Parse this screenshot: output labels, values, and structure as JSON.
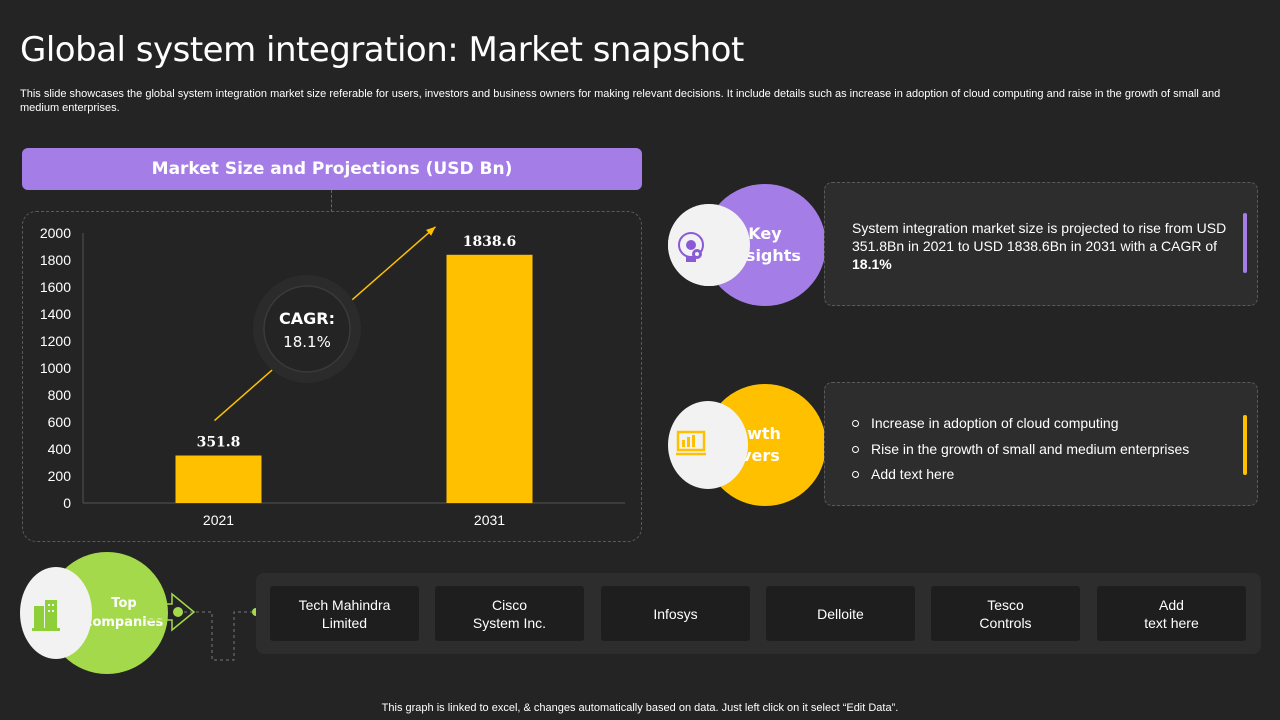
{
  "title": "Global system integration: Market snapshot",
  "subtitle": "This slide showcases the global system integration market size referable for users, investors and business owners for making relevant decisions. It include details such as increase in adoption of cloud computing and raise in the growth of small and medium enterprises.",
  "chart_header": "Market Size and Projections (USD Bn)",
  "chart_data": {
    "type": "bar",
    "categories": [
      "2021",
      "2031"
    ],
    "values": [
      351.8,
      1838.6
    ],
    "value_labels": [
      "351.8",
      "1838.6"
    ],
    "title": "Market Size and Projections (USD Bn)",
    "xlabel": "",
    "ylabel": "",
    "ylim": [
      0,
      2000
    ],
    "yticks": [
      "0",
      "200",
      "400",
      "600",
      "800",
      "1000",
      "1200",
      "1400",
      "1600",
      "1800",
      "2000"
    ],
    "bar_color": "#ffc000",
    "grid": false
  },
  "cagr": {
    "label": "CAGR:",
    "value": "18.1%"
  },
  "key_insights": {
    "badge_label_line1": "Key",
    "badge_label_line2": "insights",
    "icon": "lightbulb-gear-icon",
    "color": "#a47ee6",
    "text_before": "System integration market size is projected to rise from USD 351.8Bn in 2021 to USD 1838.6Bn in 2031 with a CAGR of ",
    "text_bold": "18.1%"
  },
  "growth_drivers": {
    "badge_label_line1": "Growth",
    "badge_label_line2": "drivers",
    "icon": "presentation-chart-icon",
    "color": "#ffc000",
    "items": [
      "Increase in adoption of cloud computing",
      "Rise in the growth of small and medium enterprises",
      "Add text here"
    ]
  },
  "top_companies": {
    "badge_label_line1": "Top",
    "badge_label_line2": "companies",
    "icon": "buildings-icon",
    "color": "#a3d94a",
    "items": [
      "Tech Mahindra\nLimited",
      "Cisco\nSystem Inc.",
      "Infosys",
      "Delloite",
      "Tesco\nControls",
      "Add\ntext here"
    ]
  },
  "footer": "This graph is linked to excel, & changes automatically based on data. Just left click on it select “Edit Data”."
}
